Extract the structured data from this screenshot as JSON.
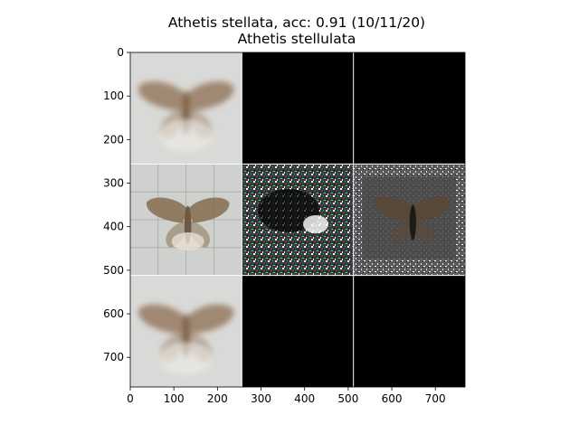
{
  "chart_data": {
    "type": "image-grid",
    "title": "Athetis stellata, acc: 0.91 (10/11/20)",
    "subtitle": "Athetis stellulata",
    "xlim": [
      0,
      768
    ],
    "ylim": [
      768,
      0
    ],
    "xticks": [
      0,
      100,
      200,
      300,
      400,
      500,
      600,
      700
    ],
    "yticks": [
      0,
      100,
      200,
      300,
      400,
      500,
      600,
      700
    ],
    "grid_rows": 3,
    "grid_cols": 3,
    "cell_size": 256,
    "cells": [
      {
        "row": 0,
        "col": 0,
        "content": "moth-specimen-blurred"
      },
      {
        "row": 0,
        "col": 1,
        "content": "black"
      },
      {
        "row": 0,
        "col": 2,
        "content": "black"
      },
      {
        "row": 1,
        "col": 0,
        "content": "moth-specimen-sharp"
      },
      {
        "row": 1,
        "col": 1,
        "content": "noisy-gradient-map"
      },
      {
        "row": 1,
        "col": 2,
        "content": "masked-moth-overlay"
      },
      {
        "row": 2,
        "col": 0,
        "content": "moth-specimen-blurred"
      },
      {
        "row": 2,
        "col": 1,
        "content": "black"
      },
      {
        "row": 2,
        "col": 2,
        "content": "black"
      }
    ]
  }
}
